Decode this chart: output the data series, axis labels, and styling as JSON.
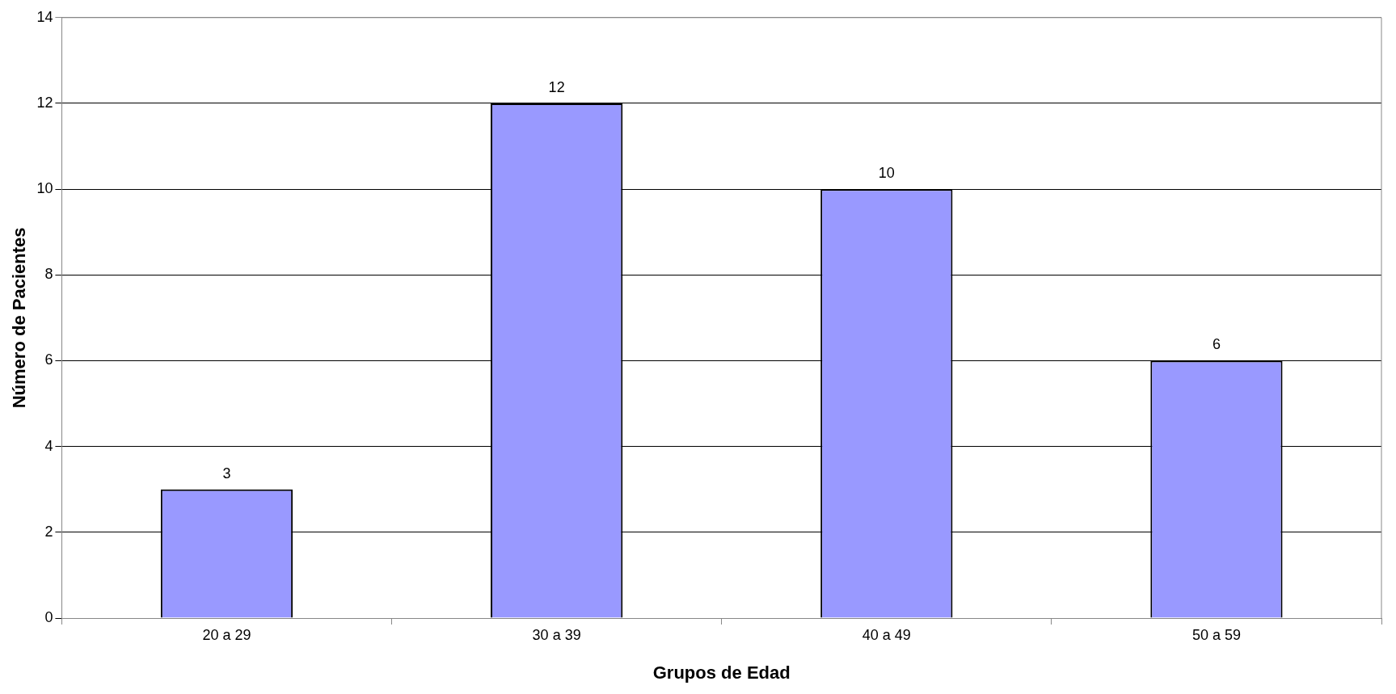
{
  "chart_data": {
    "type": "bar",
    "xlabel": "Grupos de Edad",
    "ylabel": "Número de Pacientes",
    "categories": [
      "20 a 29",
      "30 a 39",
      "40 a 49",
      "50 a 59"
    ],
    "values": [
      3,
      12,
      10,
      6
    ],
    "color": "#9999ff",
    "ylim": [
      0,
      14
    ],
    "yticks": [
      0,
      2,
      4,
      6,
      8,
      10,
      12,
      14
    ],
    "grid": "y",
    "data_labels": true,
    "legend": false
  }
}
